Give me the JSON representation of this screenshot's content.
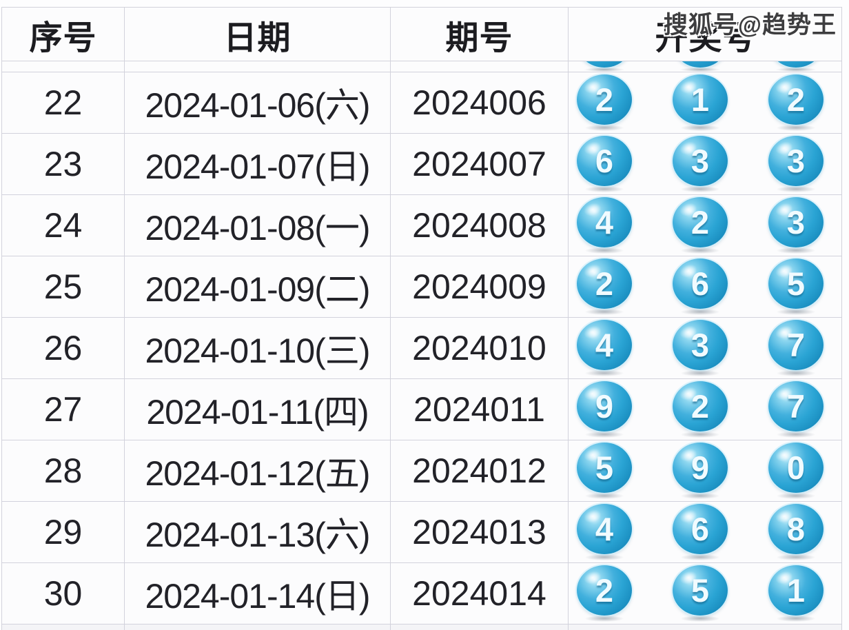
{
  "watermark": "搜狐号@趋势王",
  "table": {
    "headers": {
      "index": "序号",
      "date": "日期",
      "issue": "期号",
      "numbers": "开奖号"
    },
    "top_partial_row": {
      "visible_ball_bottoms": 3
    },
    "rows": [
      {
        "index": "22",
        "date": "2024-01-06(六)",
        "issue": "2024006",
        "numbers": [
          2,
          1,
          2
        ]
      },
      {
        "index": "23",
        "date": "2024-01-07(日)",
        "issue": "2024007",
        "numbers": [
          6,
          3,
          3
        ]
      },
      {
        "index": "24",
        "date": "2024-01-08(一)",
        "issue": "2024008",
        "numbers": [
          4,
          2,
          3
        ]
      },
      {
        "index": "25",
        "date": "2024-01-09(二)",
        "issue": "2024009",
        "numbers": [
          2,
          6,
          5
        ]
      },
      {
        "index": "26",
        "date": "2024-01-10(三)",
        "issue": "2024010",
        "numbers": [
          4,
          3,
          7
        ]
      },
      {
        "index": "27",
        "date": "2024-01-11(四)",
        "issue": "2024011",
        "numbers": [
          9,
          2,
          7
        ]
      },
      {
        "index": "28",
        "date": "2024-01-12(五)",
        "issue": "2024012",
        "numbers": [
          5,
          9,
          0
        ]
      },
      {
        "index": "29",
        "date": "2024-01-13(六)",
        "issue": "2024013",
        "numbers": [
          4,
          6,
          8
        ]
      },
      {
        "index": "30",
        "date": "2024-01-14(日)",
        "issue": "2024014",
        "numbers": [
          2,
          5,
          1
        ]
      }
    ]
  },
  "colors": {
    "ball_main": "#2aa4d4",
    "ball_dark": "#1384b6",
    "ball_highlight": "#cdeefb",
    "ball_digit": "#f1fbff",
    "grid_border": "#d2d2dc",
    "row_background": "#fcfcfd",
    "header_text": "#1c1c20",
    "body_text": "#222228",
    "watermark_text": "#3d3d3f"
  }
}
